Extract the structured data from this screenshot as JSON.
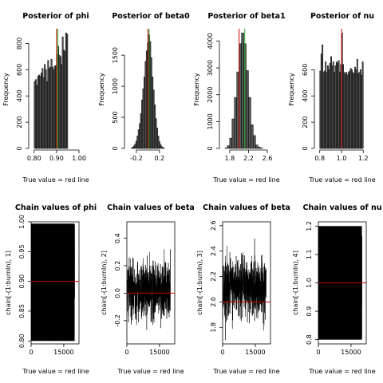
{
  "colors": {
    "bar": "#555555",
    "truth": "#cc0000",
    "mean": "#22aa22",
    "trace": "#000000"
  },
  "chart_data": [
    {
      "type": "bar",
      "title": "Posterior of phi",
      "xlabel": "True value = red line",
      "ylabel": "Frequency",
      "xlim": [
        0.79,
        1.0
      ],
      "ylim": [
        0,
        900
      ],
      "xticks": [
        "0.80",
        "0.90",
        "1.00"
      ],
      "xtick_values": [
        0.8,
        0.9,
        1.0
      ],
      "yticks": [
        "0",
        "200",
        "400",
        "600",
        "800"
      ],
      "ytick_values": [
        0,
        200,
        400,
        600,
        800
      ],
      "bin_start": 0.8,
      "bin_width": 0.005,
      "values": [
        510,
        525,
        480,
        550,
        560,
        550,
        575,
        610,
        540,
        640,
        600,
        510,
        670,
        610,
        620,
        680,
        620,
        600,
        630,
        630,
        720,
        780,
        710,
        700,
        640,
        850,
        750,
        740,
        880,
        870
      ],
      "true_value": 0.9,
      "mean_value": 0.905
    },
    {
      "type": "bar",
      "title": "Posterior of beta0",
      "xlabel": "",
      "ylabel": "Frequency",
      "xlim": [
        -0.35,
        0.45
      ],
      "ylim": [
        0,
        1900
      ],
      "xticks": [
        "-0.2",
        "0.2"
      ],
      "xtick_values": [
        -0.2,
        0.2
      ],
      "yticks": [
        "0",
        "500",
        "1000",
        "1500"
      ],
      "ytick_values": [
        0,
        500,
        1000,
        1500
      ],
      "bin_start": -0.29,
      "bin_width": 0.02,
      "values": [
        5,
        20,
        40,
        70,
        120,
        200,
        300,
        400,
        560,
        780,
        960,
        1150,
        1400,
        1570,
        1700,
        1830,
        1720,
        1460,
        1150,
        940,
        700,
        480,
        330,
        200,
        110,
        60,
        30,
        12,
        5
      ],
      "true_value": 0.0,
      "mean_value": 0.02
    },
    {
      "type": "bar",
      "title": "Posterior of beta1",
      "xlabel": "True value = red line",
      "ylabel": "Frequency",
      "xlim": [
        1.65,
        2.65
      ],
      "ylim": [
        0,
        4400
      ],
      "xticks": [
        "1.8",
        "2.2",
        "2.6"
      ],
      "xtick_values": [
        1.8,
        2.2,
        2.6
      ],
      "yticks": [
        "0",
        "1000",
        "2000",
        "3000",
        "4000"
      ],
      "ytick_values": [
        0,
        1000,
        2000,
        3000,
        4000
      ],
      "bin_start": 1.7,
      "bin_width": 0.05,
      "values": [
        15,
        100,
        380,
        1100,
        1900,
        2850,
        3900,
        4300,
        3900,
        2900,
        1900,
        880,
        480,
        130,
        50,
        15
      ],
      "true_value": 2.0,
      "mean_value": 2.12
    },
    {
      "type": "bar",
      "title": "Posterior of nu",
      "xlabel": "True value = red line",
      "ylabel": "Frequency",
      "xlim": [
        0.78,
        1.22
      ],
      "ylim": [
        0,
        900
      ],
      "xticks": [
        "0.8",
        "1.0",
        "1.2"
      ],
      "xtick_values": [
        0.8,
        1.0,
        1.2
      ],
      "yticks": [
        "0",
        "200",
        "400",
        "600"
      ],
      "ytick_values": [
        0,
        200,
        400,
        600
      ],
      "bin_start": 0.8,
      "bin_width": 0.01,
      "values": [
        590,
        720,
        790,
        580,
        590,
        660,
        580,
        630,
        600,
        650,
        700,
        630,
        660,
        580,
        630,
        660,
        650,
        670,
        580,
        640,
        880,
        640,
        580,
        570,
        580,
        560,
        580,
        590,
        610,
        600,
        580,
        570,
        620,
        600,
        680,
        570,
        580,
        600,
        560,
        660
      ],
      "true_value": 1.0
    },
    {
      "type": "line",
      "title": "Chain values of phi",
      "xlabel": "True value = red line",
      "ylabel": "chain[-(1:burnIn), 1]",
      "xlim": [
        0,
        22000
      ],
      "ylim": [
        0.795,
        1.0
      ],
      "xticks": [
        "0",
        "15000"
      ],
      "xtick_values": [
        0,
        15000
      ],
      "yticks": [
        "0.80",
        "0.85",
        "0.90",
        "0.95",
        "1.00"
      ],
      "ytick_values": [
        0.8,
        0.85,
        0.9,
        0.95,
        1.0
      ],
      "n_iter": 20000,
      "band": [
        0.8,
        0.997
      ],
      "center": 0.9,
      "spread": 0.1,
      "dist": "uniform",
      "true_value": 0.9
    },
    {
      "type": "line",
      "title": "Chain values of beta",
      "xlabel": "True value = red line",
      "ylabel": "chain[-(1:burnIn), 2]",
      "xlim": [
        0,
        22000
      ],
      "ylim": [
        -0.37,
        0.52
      ],
      "xticks": [
        "0",
        "15000"
      ],
      "xtick_values": [
        0,
        15000
      ],
      "yticks": [
        "-0.2",
        "0.0",
        "0.2",
        "0.4"
      ],
      "ytick_values": [
        -0.2,
        0.0,
        0.2,
        0.4
      ],
      "n_iter": 20000,
      "band": [
        -0.33,
        0.43
      ],
      "center": 0.02,
      "spread": 0.1,
      "dist": "normal",
      "true_value": 0.0
    },
    {
      "type": "line",
      "title": "Chain values of beta",
      "xlabel": "True value = red line",
      "ylabel": "chain[-(1:burnIn), 3]",
      "xlim": [
        0,
        22000
      ],
      "ylim": [
        1.67,
        2.63
      ],
      "xticks": [
        "0",
        "15000"
      ],
      "xtick_values": [
        0,
        15000
      ],
      "yticks": [
        "1.8",
        "2.0",
        "2.2",
        "2.4",
        "2.6"
      ],
      "ytick_values": [
        1.8,
        2.0,
        2.2,
        2.4,
        2.6
      ],
      "n_iter": 20000,
      "band": [
        1.7,
        2.6
      ],
      "center": 2.12,
      "spread": 0.11,
      "dist": "normal",
      "true_value": 2.0
    },
    {
      "type": "line",
      "title": "Chain values of nu",
      "xlabel": "True value = red line",
      "ylabel": "chain[-(1:burnIn), 4]",
      "xlim": [
        0,
        22000
      ],
      "ylim": [
        0.785,
        1.215
      ],
      "xticks": [
        "0",
        "15000"
      ],
      "xtick_values": [
        0,
        15000
      ],
      "yticks": [
        "0.8",
        "0.9",
        "1.0",
        "1.1",
        "1.2"
      ],
      "ytick_values": [
        0.8,
        0.9,
        1.0,
        1.1,
        1.2
      ],
      "n_iter": 20000,
      "band": [
        0.8,
        1.2
      ],
      "center": 1.0,
      "spread": 0.2,
      "dist": "uniform",
      "true_value": 1.0
    }
  ]
}
